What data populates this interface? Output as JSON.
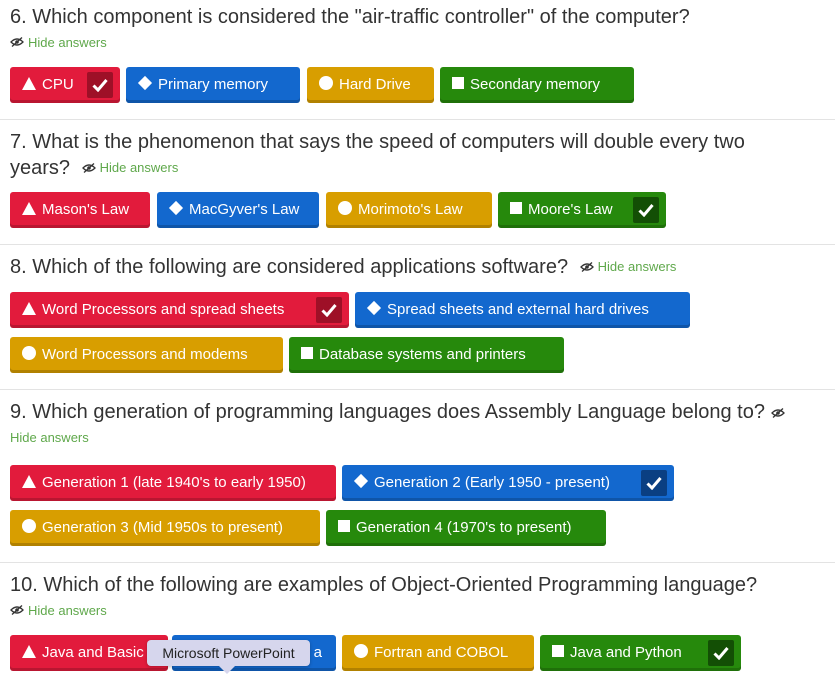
{
  "hide_answers_label": "Hide answers",
  "questions": [
    {
      "title": "6. Which component is considered the \"air-traffic controller\" of the computer?",
      "answers": [
        "CPU",
        "Primary memory",
        "Hard Drive",
        "Secondary memory"
      ]
    },
    {
      "title_line1": "7. What is the phenomenon that says the speed of computers will double every two",
      "title_line2": "years?",
      "answers": [
        "Mason's Law",
        "MacGyver's Law",
        "Morimoto's Law",
        "Moore's Law"
      ]
    },
    {
      "title": "8. Which of the following are considered applications software?",
      "answers": [
        "Word Processors and spread sheets",
        "Spread sheets and external hard drives",
        "Word Processors and modems",
        "Database systems and printers"
      ]
    },
    {
      "title": "9. Which generation of programming languages does Assembly Language belong to?",
      "answers": [
        "Generation 1 (late 1940's to early 1950)",
        "Generation 2 (Early 1950 - present)",
        "Generation 3 (Mid 1950s to present)",
        "Generation 4 (1970's to present)"
      ]
    },
    {
      "title": "10. Which of the following are examples of Object-Oriented Programming language?",
      "answers": [
        "Java and Basic",
        "Fortran and COBOL",
        "Java and Python"
      ],
      "obscured_answer_tail": "a"
    }
  ],
  "tooltip": "Microsoft PowerPoint",
  "colors": {
    "red": "#e21b3c",
    "blue": "#1368ce",
    "yellow": "#d89e00",
    "green": "#26890c"
  },
  "icons": [
    "triangle-icon",
    "diamond-icon",
    "circle-icon",
    "square-icon",
    "check-icon",
    "eye-slash-icon"
  ]
}
